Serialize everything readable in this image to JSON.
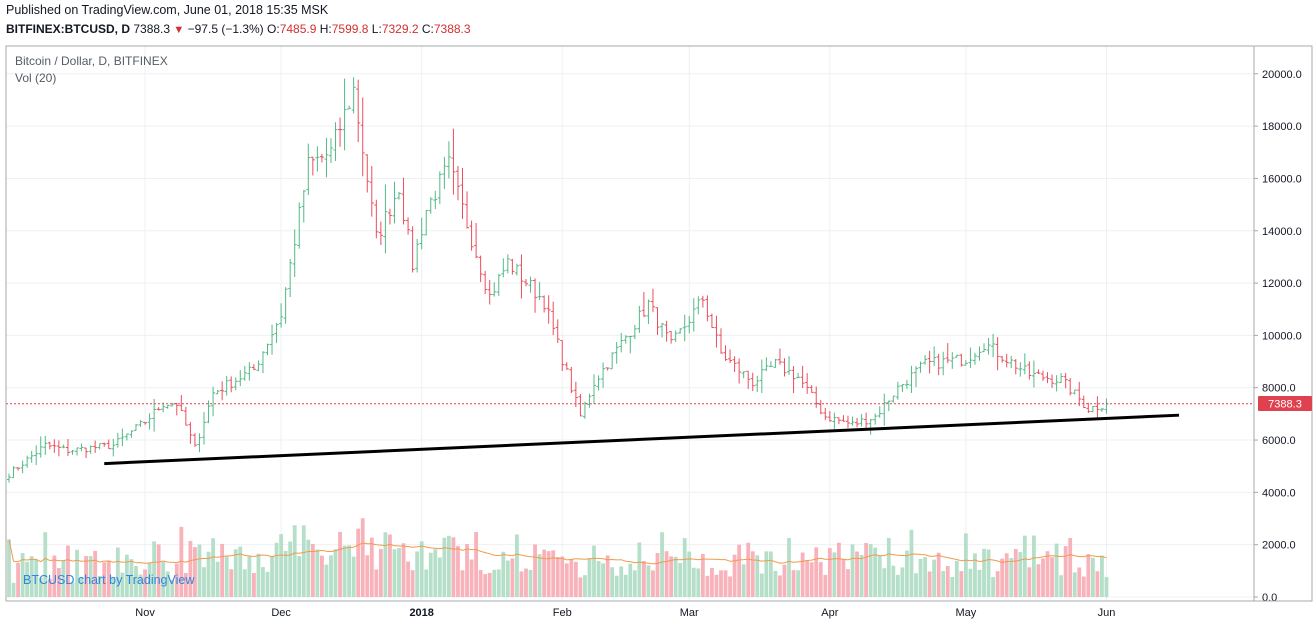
{
  "header": {
    "published": "Published on TradingView.com, June 01, 2018 15:35 MSK"
  },
  "ticker": {
    "symbol": "BITFINEX:BTCUSD, D",
    "last": "7388.3",
    "change": "−97.5 (−1.3%)",
    "o_label": "O:",
    "o": "7485.9",
    "h_label": "H:",
    "h": "7599.8",
    "l_label": "L:",
    "l": "7329.2",
    "c_label": "C:",
    "c": "7388.3"
  },
  "legend": {
    "title": "Bitcoin / Dollar, D, BITFINEX",
    "volume_label": "Vol (20)",
    "watermark": "BTCUSD chart by TradingView"
  },
  "price_tag": "7388.3",
  "colors": {
    "up": "#53b987",
    "down": "#eb4d5c",
    "vol_up": "#b5dfc8",
    "vol_down": "#f7b2ba",
    "vol_ma": "#f19a4c",
    "trendline": "#000000",
    "price_line": "#e0414f",
    "grid": "#eef0f3"
  },
  "chart_data": {
    "type": "ohlc",
    "interval": "1D",
    "symbol": "BITFINEX:BTCUSD",
    "price_axis_ticks": [
      20000,
      18000,
      16000,
      14000,
      12000,
      10000,
      8000,
      6000,
      4000,
      2000,
      0
    ],
    "price_axis_labels": [
      "20000.0",
      "18000.0",
      "16000.0",
      "14000.0",
      "12000.0",
      "10000.0",
      "8000.0",
      "6000.0",
      "4000.0",
      "2000.0",
      "0.0"
    ],
    "x_axis_labels": [
      {
        "date": "2017-11-01",
        "label": "Nov",
        "bold": false
      },
      {
        "date": "2017-12-01",
        "label": "Dec",
        "bold": false
      },
      {
        "date": "2018-01-01",
        "label": "2018",
        "bold": true
      },
      {
        "date": "2018-02-01",
        "label": "Feb",
        "bold": false
      },
      {
        "date": "2018-03-01",
        "label": "Mar",
        "bold": false
      },
      {
        "date": "2018-04-01",
        "label": "Apr",
        "bold": false
      },
      {
        "date": "2018-05-01",
        "label": "May",
        "bold": false
      },
      {
        "date": "2018-06-01",
        "label": "Jun",
        "bold": false
      }
    ],
    "first_date": "2017-10-02",
    "last_close": 7388.3,
    "close_path": [
      [
        "2017-10-02",
        4700
      ],
      [
        "2017-10-10",
        5800
      ],
      [
        "2017-10-15",
        5600
      ],
      [
        "2017-10-25",
        5800
      ],
      [
        "2017-11-01",
        6700
      ],
      [
        "2017-11-05",
        7400
      ],
      [
        "2017-11-08",
        7400
      ],
      [
        "2017-11-12",
        5700
      ],
      [
        "2017-11-16",
        7800
      ],
      [
        "2017-11-25",
        8700
      ],
      [
        "2017-12-01",
        10800
      ],
      [
        "2017-12-07",
        16500
      ],
      [
        "2017-12-12",
        17000
      ],
      [
        "2017-12-17",
        19400
      ],
      [
        "2017-12-22",
        13700
      ],
      [
        "2017-12-27",
        15700
      ],
      [
        "2017-12-30",
        12700
      ],
      [
        "2018-01-02",
        14800
      ],
      [
        "2018-01-07",
        16500
      ],
      [
        "2018-01-16",
        11500
      ],
      [
        "2018-01-20",
        12800
      ],
      [
        "2018-01-28",
        11300
      ],
      [
        "2018-02-05",
        6900
      ],
      [
        "2018-02-08",
        8200
      ],
      [
        "2018-02-16",
        10200
      ],
      [
        "2018-02-20",
        11200
      ],
      [
        "2018-02-25",
        9600
      ],
      [
        "2018-03-04",
        11400
      ],
      [
        "2018-03-08",
        9300
      ],
      [
        "2018-03-15",
        8200
      ],
      [
        "2018-03-20",
        8900
      ],
      [
        "2018-03-25",
        8400
      ],
      [
        "2018-03-31",
        6900
      ],
      [
        "2018-04-06",
        6600
      ],
      [
        "2018-04-11",
        6900
      ],
      [
        "2018-04-16",
        8000
      ],
      [
        "2018-04-22",
        8900
      ],
      [
        "2018-05-01",
        9100
      ],
      [
        "2018-05-05",
        9700
      ],
      [
        "2018-05-15",
        8500
      ],
      [
        "2018-05-22",
        8300
      ],
      [
        "2018-05-28",
        7200
      ],
      [
        "2018-06-01",
        7388
      ]
    ],
    "trendline": {
      "start": {
        "date": "2017-10-23",
        "value": 5100
      },
      "end": {
        "date": "2018-06-17",
        "value": 6950
      }
    },
    "current_price": 7388.3,
    "volume_axis_ticks": [
      4000,
      2000,
      0
    ],
    "volume_axis_labels": [
      "4000.0",
      "2000.0",
      "0.0"
    ],
    "volume_ma_period": 20
  }
}
